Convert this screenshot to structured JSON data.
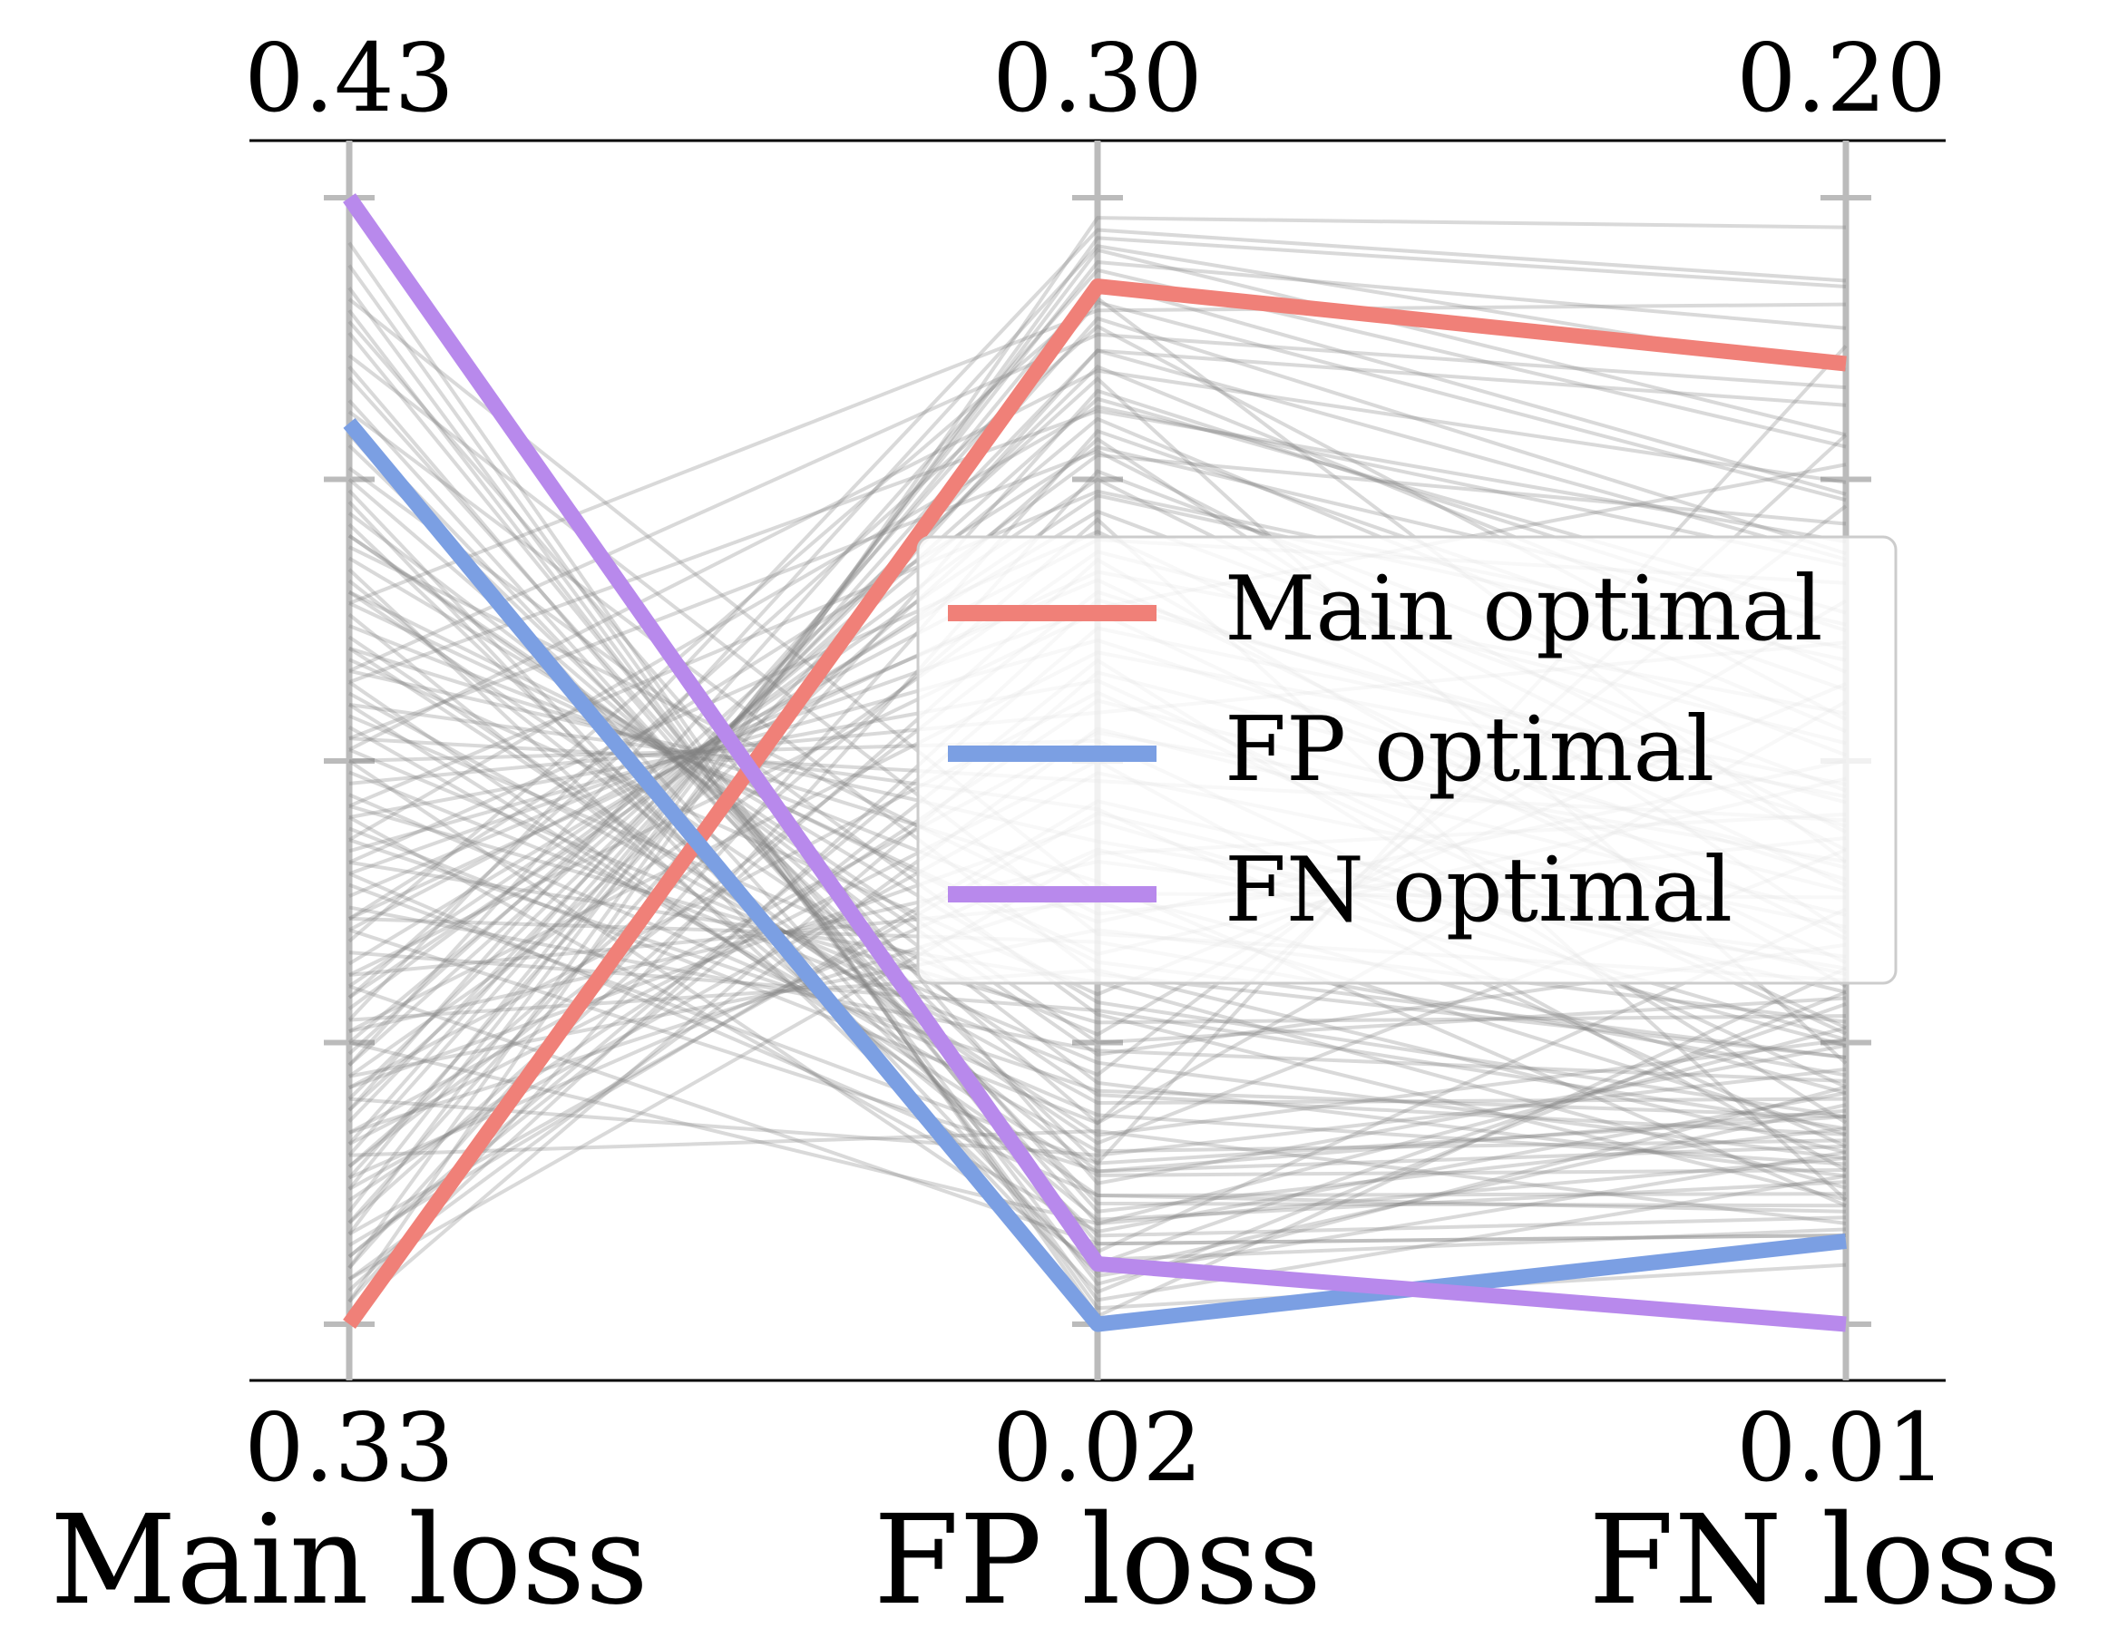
{
  "chart_data": {
    "type": "parallel_coordinates",
    "axes": [
      {
        "name": "Main loss",
        "top_label": "0.43",
        "bottom_label": "0.33",
        "range": [
          0.33,
          0.43
        ]
      },
      {
        "name": "FP loss",
        "top_label": "0.30",
        "bottom_label": "0.02",
        "range": [
          0.02,
          0.3
        ]
      },
      {
        "name": "FN loss",
        "top_label": "0.20",
        "bottom_label": "0.01",
        "range": [
          0.01,
          0.2
        ]
      }
    ],
    "series": [
      {
        "name": "Main optimal",
        "color": "#F08078",
        "values": [
          0.33,
          0.278,
          0.172
        ]
      },
      {
        "name": "FP optimal",
        "color": "#7B9FE3",
        "values": [
          0.41,
          0.02,
          0.024
        ]
      },
      {
        "name": "FN optimal",
        "color": "#B889EC",
        "values": [
          0.43,
          0.035,
          0.01
        ]
      }
    ],
    "background_lines_color": "#808080",
    "background_lines": [
      [
        0.332,
        0.295,
        0.195
      ],
      [
        0.335,
        0.29,
        0.185
      ],
      [
        0.338,
        0.287,
        0.16
      ],
      [
        0.34,
        0.284,
        0.178
      ],
      [
        0.342,
        0.279,
        0.15
      ],
      [
        0.345,
        0.27,
        0.14
      ],
      [
        0.348,
        0.262,
        0.165
      ],
      [
        0.35,
        0.258,
        0.12
      ],
      [
        0.353,
        0.25,
        0.13
      ],
      [
        0.355,
        0.245,
        0.11
      ],
      [
        0.358,
        0.236,
        0.145
      ],
      [
        0.36,
        0.23,
        0.09
      ],
      [
        0.362,
        0.222,
        0.1
      ],
      [
        0.365,
        0.215,
        0.135
      ],
      [
        0.368,
        0.205,
        0.075
      ],
      [
        0.37,
        0.198,
        0.155
      ],
      [
        0.372,
        0.19,
        0.085
      ],
      [
        0.375,
        0.18,
        0.06
      ],
      [
        0.378,
        0.172,
        0.125
      ],
      [
        0.38,
        0.165,
        0.05
      ],
      [
        0.382,
        0.155,
        0.095
      ],
      [
        0.385,
        0.148,
        0.04
      ],
      [
        0.388,
        0.14,
        0.07
      ],
      [
        0.39,
        0.13,
        0.03
      ],
      [
        0.392,
        0.12,
        0.105
      ],
      [
        0.395,
        0.11,
        0.055
      ],
      [
        0.398,
        0.1,
        0.045
      ],
      [
        0.4,
        0.09,
        0.065
      ],
      [
        0.402,
        0.08,
        0.035
      ],
      [
        0.405,
        0.07,
        0.115
      ],
      [
        0.408,
        0.06,
        0.045
      ],
      [
        0.41,
        0.05,
        0.03
      ],
      [
        0.412,
        0.045,
        0.06
      ],
      [
        0.415,
        0.04,
        0.025
      ],
      [
        0.418,
        0.038,
        0.08
      ],
      [
        0.42,
        0.03,
        0.05
      ],
      [
        0.422,
        0.026,
        0.035
      ],
      [
        0.424,
        0.024,
        0.02
      ],
      [
        0.426,
        0.022,
        0.07
      ],
      [
        0.401,
        0.042,
        0.028
      ],
      [
        0.396,
        0.058,
        0.04
      ],
      [
        0.391,
        0.065,
        0.09
      ],
      [
        0.386,
        0.075,
        0.048
      ],
      [
        0.381,
        0.085,
        0.038
      ],
      [
        0.376,
        0.095,
        0.062
      ],
      [
        0.371,
        0.105,
        0.033
      ],
      [
        0.366,
        0.115,
        0.052
      ],
      [
        0.361,
        0.125,
        0.042
      ],
      [
        0.356,
        0.135,
        0.072
      ],
      [
        0.351,
        0.145,
        0.058
      ],
      [
        0.346,
        0.16,
        0.036
      ],
      [
        0.341,
        0.175,
        0.083
      ],
      [
        0.336,
        0.185,
        0.044
      ],
      [
        0.333,
        0.2,
        0.098
      ],
      [
        0.339,
        0.21,
        0.067
      ],
      [
        0.344,
        0.22,
        0.031
      ],
      [
        0.349,
        0.24,
        0.076
      ],
      [
        0.354,
        0.255,
        0.054
      ],
      [
        0.359,
        0.268,
        0.112
      ],
      [
        0.364,
        0.275,
        0.088
      ],
      [
        0.369,
        0.06,
        0.175
      ],
      [
        0.374,
        0.07,
        0.16
      ],
      [
        0.379,
        0.082,
        0.148
      ],
      [
        0.384,
        0.092,
        0.132
      ],
      [
        0.389,
        0.102,
        0.118
      ],
      [
        0.394,
        0.112,
        0.102
      ],
      [
        0.399,
        0.122,
        0.092
      ],
      [
        0.404,
        0.032,
        0.039
      ],
      [
        0.409,
        0.036,
        0.026
      ],
      [
        0.414,
        0.048,
        0.043
      ],
      [
        0.419,
        0.055,
        0.057
      ],
      [
        0.403,
        0.028,
        0.066
      ],
      [
        0.397,
        0.033,
        0.047
      ],
      [
        0.393,
        0.046,
        0.034
      ],
      [
        0.387,
        0.052,
        0.029
      ],
      [
        0.383,
        0.063,
        0.041
      ],
      [
        0.377,
        0.072,
        0.037
      ],
      [
        0.373,
        0.078,
        0.045
      ],
      [
        0.367,
        0.088,
        0.051
      ],
      [
        0.363,
        0.098,
        0.043
      ],
      [
        0.357,
        0.108,
        0.039
      ],
      [
        0.352,
        0.118,
        0.061
      ],
      [
        0.347,
        0.128,
        0.049
      ],
      [
        0.343,
        0.138,
        0.057
      ],
      [
        0.337,
        0.15,
        0.069
      ],
      [
        0.334,
        0.168,
        0.079
      ],
      [
        0.331,
        0.182,
        0.087
      ],
      [
        0.336,
        0.193,
        0.101
      ],
      [
        0.344,
        0.202,
        0.094
      ],
      [
        0.352,
        0.212,
        0.108
      ],
      [
        0.359,
        0.226,
        0.122
      ],
      [
        0.366,
        0.238,
        0.128
      ],
      [
        0.373,
        0.248,
        0.138
      ],
      [
        0.381,
        0.257,
        0.152
      ],
      [
        0.388,
        0.266,
        0.168
      ],
      [
        0.394,
        0.272,
        0.182
      ],
      [
        0.36,
        0.04,
        0.025
      ],
      [
        0.355,
        0.045,
        0.038
      ],
      [
        0.37,
        0.052,
        0.032
      ],
      [
        0.365,
        0.058,
        0.046
      ],
      [
        0.35,
        0.062,
        0.053
      ],
      [
        0.345,
        0.068,
        0.027
      ],
      [
        0.38,
        0.035,
        0.064
      ],
      [
        0.375,
        0.043,
        0.049
      ],
      [
        0.385,
        0.057,
        0.036
      ],
      [
        0.39,
        0.067,
        0.058
      ],
      [
        0.395,
        0.077,
        0.042
      ],
      [
        0.4,
        0.087,
        0.074
      ],
      [
        0.406,
        0.097,
        0.031
      ],
      [
        0.411,
        0.107,
        0.055
      ],
      [
        0.416,
        0.117,
        0.068
      ],
      [
        0.421,
        0.127,
        0.082
      ],
      [
        0.334,
        0.137,
        0.096
      ],
      [
        0.338,
        0.147,
        0.066
      ],
      [
        0.342,
        0.157,
        0.077
      ],
      [
        0.347,
        0.167,
        0.088
      ],
      [
        0.351,
        0.177,
        0.059
      ],
      [
        0.356,
        0.187,
        0.099
      ],
      [
        0.361,
        0.197,
        0.071
      ],
      [
        0.366,
        0.207,
        0.113
      ],
      [
        0.371,
        0.217,
        0.084
      ],
      [
        0.376,
        0.227,
        0.124
      ],
      [
        0.382,
        0.237,
        0.093
      ],
      [
        0.387,
        0.247,
        0.142
      ],
      [
        0.332,
        0.232,
        0.106
      ],
      [
        0.335,
        0.242,
        0.117
      ],
      [
        0.339,
        0.252,
        0.127
      ],
      [
        0.343,
        0.262,
        0.139
      ],
      [
        0.346,
        0.274,
        0.149
      ],
      [
        0.349,
        0.282,
        0.158
      ],
      [
        0.353,
        0.288,
        0.171
      ],
      [
        0.357,
        0.292,
        0.186
      ]
    ]
  }
}
